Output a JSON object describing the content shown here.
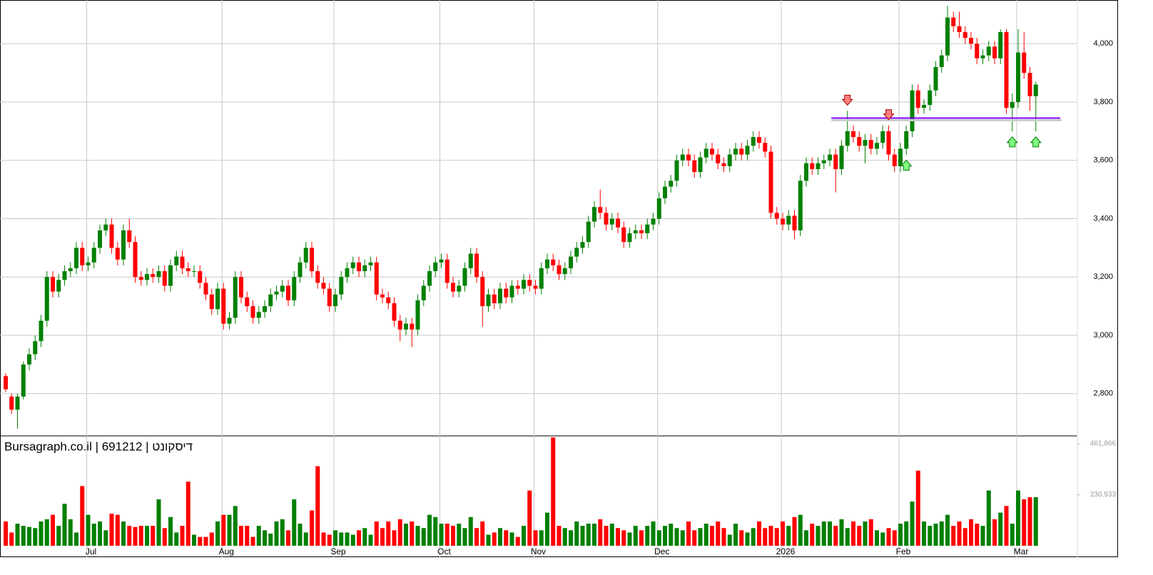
{
  "chart_data": {
    "type": "candlestick",
    "title": "Bursagraph.co.il | 691212 | דיסקונט",
    "up_color": "#008000",
    "down_color": "#ff0000",
    "level_color": "#8000ff",
    "level": 3745,
    "ylim": [
      2660,
      4150
    ],
    "yticks": [
      {
        "value": 2800,
        "label": "2,800"
      },
      {
        "value": 3000,
        "label": "3,000"
      },
      {
        "value": 3200,
        "label": "3,200"
      },
      {
        "value": 3400,
        "label": "3,400"
      },
      {
        "value": 3600,
        "label": "3,600"
      },
      {
        "value": 3800,
        "label": "3,800"
      },
      {
        "value": 4000,
        "label": "4,000"
      }
    ],
    "vlim": [
      0,
      494000
    ],
    "vticks": [
      {
        "value": 230933,
        "label": "230,933"
      },
      {
        "value": 461866,
        "label": "461,866"
      }
    ],
    "grid": true,
    "categories": [
      null,
      null,
      null,
      null,
      null,
      null,
      null,
      null,
      null,
      null,
      null,
      null,
      null,
      null,
      "Jul",
      null,
      null,
      null,
      null,
      null,
      null,
      null,
      null,
      null,
      null,
      null,
      null,
      null,
      null,
      null,
      null,
      null,
      null,
      null,
      null,
      null,
      null,
      "Aug",
      null,
      null,
      null,
      null,
      null,
      null,
      null,
      null,
      null,
      null,
      null,
      null,
      null,
      null,
      null,
      null,
      null,
      null,
      "Sep",
      null,
      null,
      null,
      null,
      null,
      null,
      null,
      null,
      null,
      null,
      null,
      null,
      null,
      null,
      null,
      null,
      null,
      "Oct",
      null,
      null,
      null,
      null,
      null,
      null,
      null,
      null,
      null,
      null,
      null,
      null,
      null,
      null,
      null,
      "Nov",
      null,
      null,
      null,
      null,
      null,
      null,
      null,
      null,
      null,
      null,
      null,
      null,
      null,
      null,
      null,
      null,
      null,
      null,
      null,
      null,
      "Dec",
      null,
      null,
      null,
      null,
      null,
      null,
      null,
      null,
      null,
      null,
      null,
      null,
      null,
      null,
      null,
      null,
      null,
      null,
      null,
      null,
      "2026",
      null,
      null,
      null,
      null,
      null,
      null,
      null,
      null,
      null,
      null,
      null,
      null,
      null,
      null,
      null,
      null,
      null,
      null,
      null,
      "Feb",
      null,
      null,
      null,
      null,
      null,
      null,
      null,
      null,
      null,
      null,
      null,
      null,
      null,
      null,
      null,
      null,
      null,
      null,
      null,
      "Mar",
      null,
      null,
      null
    ],
    "candles": [
      [
        2860,
        2870,
        2805,
        2815
      ],
      [
        2790,
        2800,
        2730,
        2745
      ],
      [
        2745,
        2800,
        2680,
        2790
      ],
      [
        2790,
        2910,
        2780,
        2900
      ],
      [
        2900,
        2955,
        2880,
        2935
      ],
      [
        2935,
        3000,
        2915,
        2980
      ],
      [
        2980,
        3070,
        2960,
        3050
      ],
      [
        3050,
        3220,
        3030,
        3200
      ],
      [
        3200,
        3220,
        3130,
        3150
      ],
      [
        3150,
        3210,
        3130,
        3190
      ],
      [
        3190,
        3240,
        3170,
        3220
      ],
      [
        3220,
        3250,
        3200,
        3230
      ],
      [
        3230,
        3320,
        3210,
        3300
      ],
      [
        3300,
        3320,
        3220,
        3240
      ],
      [
        3240,
        3270,
        3220,
        3250
      ],
      [
        3250,
        3320,
        3230,
        3300
      ],
      [
        3300,
        3380,
        3280,
        3360
      ],
      [
        3360,
        3400,
        3340,
        3380
      ],
      [
        3380,
        3400,
        3280,
        3300
      ],
      [
        3300,
        3320,
        3240,
        3260
      ],
      [
        3260,
        3380,
        3240,
        3360
      ],
      [
        3360,
        3400,
        3300,
        3320
      ],
      [
        3320,
        3340,
        3180,
        3200
      ],
      [
        3200,
        3220,
        3170,
        3190
      ],
      [
        3190,
        3230,
        3170,
        3210
      ],
      [
        3210,
        3230,
        3180,
        3200
      ],
      [
        3200,
        3240,
        3180,
        3220
      ],
      [
        3220,
        3240,
        3150,
        3170
      ],
      [
        3170,
        3260,
        3150,
        3240
      ],
      [
        3240,
        3290,
        3220,
        3270
      ],
      [
        3270,
        3290,
        3210,
        3230
      ],
      [
        3230,
        3250,
        3200,
        3220
      ],
      [
        3220,
        3240,
        3200,
        3220
      ],
      [
        3220,
        3240,
        3160,
        3180
      ],
      [
        3180,
        3200,
        3120,
        3140
      ],
      [
        3140,
        3160,
        3070,
        3090
      ],
      [
        3090,
        3180,
        3070,
        3160
      ],
      [
        3160,
        3180,
        3020,
        3040
      ],
      [
        3040,
        3080,
        3020,
        3060
      ],
      [
        3060,
        3220,
        3040,
        3200
      ],
      [
        3200,
        3220,
        3110,
        3130
      ],
      [
        3130,
        3150,
        3080,
        3100
      ],
      [
        3100,
        3120,
        3040,
        3060
      ],
      [
        3060,
        3100,
        3040,
        3080
      ],
      [
        3080,
        3120,
        3060,
        3100
      ],
      [
        3100,
        3160,
        3080,
        3140
      ],
      [
        3140,
        3170,
        3120,
        3150
      ],
      [
        3150,
        3190,
        3130,
        3170
      ],
      [
        3170,
        3190,
        3100,
        3120
      ],
      [
        3120,
        3220,
        3100,
        3200
      ],
      [
        3200,
        3270,
        3180,
        3250
      ],
      [
        3250,
        3320,
        3230,
        3300
      ],
      [
        3300,
        3320,
        3200,
        3220
      ],
      [
        3220,
        3240,
        3160,
        3180
      ],
      [
        3180,
        3200,
        3140,
        3160
      ],
      [
        3160,
        3180,
        3080,
        3100
      ],
      [
        3100,
        3160,
        3080,
        3140
      ],
      [
        3140,
        3220,
        3120,
        3200
      ],
      [
        3200,
        3250,
        3180,
        3230
      ],
      [
        3230,
        3270,
        3210,
        3250
      ],
      [
        3250,
        3270,
        3200,
        3220
      ],
      [
        3220,
        3260,
        3200,
        3240
      ],
      [
        3240,
        3270,
        3220,
        3250
      ],
      [
        3250,
        3270,
        3120,
        3140
      ],
      [
        3140,
        3160,
        3110,
        3130
      ],
      [
        3130,
        3150,
        3090,
        3110
      ],
      [
        3110,
        3130,
        3030,
        3050
      ],
      [
        3050,
        3070,
        2980,
        3020
      ],
      [
        3020,
        3060,
        3000,
        3040
      ],
      [
        3040,
        3060,
        2960,
        3020
      ],
      [
        3020,
        3140,
        3000,
        3120
      ],
      [
        3120,
        3190,
        3100,
        3170
      ],
      [
        3170,
        3240,
        3150,
        3220
      ],
      [
        3220,
        3270,
        3200,
        3250
      ],
      [
        3250,
        3280,
        3230,
        3260
      ],
      [
        3260,
        3280,
        3160,
        3180
      ],
      [
        3180,
        3200,
        3130,
        3150
      ],
      [
        3150,
        3190,
        3130,
        3170
      ],
      [
        3170,
        3250,
        3150,
        3230
      ],
      [
        3230,
        3300,
        3210,
        3280
      ],
      [
        3280,
        3300,
        3180,
        3200
      ],
      [
        3200,
        3220,
        3030,
        3100
      ],
      [
        3100,
        3160,
        3080,
        3140
      ],
      [
        3140,
        3160,
        3090,
        3110
      ],
      [
        3110,
        3180,
        3090,
        3160
      ],
      [
        3160,
        3180,
        3110,
        3130
      ],
      [
        3130,
        3190,
        3110,
        3170
      ],
      [
        3170,
        3190,
        3140,
        3160
      ],
      [
        3160,
        3210,
        3140,
        3190
      ],
      [
        3190,
        3210,
        3150,
        3170
      ],
      [
        3170,
        3190,
        3140,
        3160
      ],
      [
        3160,
        3250,
        3140,
        3230
      ],
      [
        3230,
        3280,
        3210,
        3260
      ],
      [
        3260,
        3280,
        3220,
        3240
      ],
      [
        3240,
        3260,
        3190,
        3210
      ],
      [
        3210,
        3250,
        3190,
        3230
      ],
      [
        3230,
        3290,
        3210,
        3270
      ],
      [
        3270,
        3320,
        3250,
        3300
      ],
      [
        3300,
        3340,
        3280,
        3320
      ],
      [
        3320,
        3410,
        3300,
        3390
      ],
      [
        3390,
        3460,
        3370,
        3440
      ],
      [
        3440,
        3500,
        3400,
        3420
      ],
      [
        3420,
        3440,
        3360,
        3380
      ],
      [
        3380,
        3420,
        3360,
        3400
      ],
      [
        3400,
        3420,
        3350,
        3370
      ],
      [
        3370,
        3390,
        3300,
        3320
      ],
      [
        3320,
        3370,
        3300,
        3350
      ],
      [
        3350,
        3380,
        3330,
        3360
      ],
      [
        3360,
        3380,
        3330,
        3350
      ],
      [
        3350,
        3400,
        3330,
        3380
      ],
      [
        3380,
        3420,
        3360,
        3400
      ],
      [
        3400,
        3490,
        3380,
        3470
      ],
      [
        3470,
        3530,
        3450,
        3510
      ],
      [
        3510,
        3550,
        3490,
        3530
      ],
      [
        3530,
        3620,
        3510,
        3600
      ],
      [
        3600,
        3640,
        3580,
        3620
      ],
      [
        3620,
        3640,
        3580,
        3600
      ],
      [
        3600,
        3620,
        3540,
        3560
      ],
      [
        3560,
        3630,
        3540,
        3610
      ],
      [
        3610,
        3660,
        3590,
        3640
      ],
      [
        3640,
        3660,
        3600,
        3620
      ],
      [
        3620,
        3640,
        3570,
        3590
      ],
      [
        3590,
        3610,
        3560,
        3580
      ],
      [
        3580,
        3640,
        3560,
        3620
      ],
      [
        3620,
        3660,
        3600,
        3640
      ],
      [
        3640,
        3660,
        3600,
        3620
      ],
      [
        3620,
        3670,
        3600,
        3650
      ],
      [
        3650,
        3700,
        3630,
        3680
      ],
      [
        3680,
        3700,
        3640,
        3660
      ],
      [
        3660,
        3680,
        3610,
        3630
      ],
      [
        3630,
        3650,
        3400,
        3420
      ],
      [
        3420,
        3440,
        3380,
        3400
      ],
      [
        3400,
        3420,
        3360,
        3380
      ],
      [
        3380,
        3430,
        3360,
        3410
      ],
      [
        3410,
        3430,
        3330,
        3360
      ],
      [
        3360,
        3550,
        3340,
        3530
      ],
      [
        3530,
        3610,
        3510,
        3590
      ],
      [
        3590,
        3610,
        3550,
        3570
      ],
      [
        3570,
        3610,
        3550,
        3590
      ],
      [
        3590,
        3620,
        3570,
        3600
      ],
      [
        3600,
        3640,
        3580,
        3620
      ],
      [
        3620,
        3640,
        3490,
        3570
      ],
      [
        3570,
        3670,
        3550,
        3650
      ],
      [
        3650,
        3770,
        3630,
        3700
      ],
      [
        3700,
        3720,
        3660,
        3680
      ],
      [
        3680,
        3700,
        3630,
        3650
      ],
      [
        3650,
        3690,
        3590,
        3670
      ],
      [
        3670,
        3690,
        3620,
        3640
      ],
      [
        3640,
        3680,
        3620,
        3660
      ],
      [
        3660,
        3720,
        3640,
        3700
      ],
      [
        3700,
        3720,
        3600,
        3620
      ],
      [
        3620,
        3640,
        3560,
        3580
      ],
      [
        3580,
        3660,
        3560,
        3640
      ],
      [
        3640,
        3720,
        3620,
        3700
      ],
      [
        3700,
        3860,
        3680,
        3840
      ],
      [
        3840,
        3860,
        3760,
        3780
      ],
      [
        3780,
        3810,
        3760,
        3790
      ],
      [
        3790,
        3860,
        3770,
        3840
      ],
      [
        3840,
        3940,
        3820,
        3920
      ],
      [
        3920,
        3980,
        3900,
        3960
      ],
      [
        3960,
        4130,
        3940,
        4090
      ],
      [
        4090,
        4110,
        4040,
        4060
      ],
      [
        4060,
        4110,
        4020,
        4040
      ],
      [
        4040,
        4060,
        4000,
        4020
      ],
      [
        4020,
        4040,
        3980,
        4000
      ],
      [
        4000,
        4020,
        3930,
        3950
      ],
      [
        3950,
        3980,
        3930,
        3960
      ],
      [
        3960,
        4010,
        3940,
        3990
      ],
      [
        3990,
        4010,
        3930,
        3950
      ],
      [
        3950,
        4050,
        3930,
        4040
      ],
      [
        4040,
        4050,
        3760,
        3780
      ],
      [
        3780,
        3830,
        3700,
        3800
      ],
      [
        3800,
        4050,
        3780,
        3970
      ],
      [
        3970,
        4040,
        3880,
        3900
      ],
      [
        3900,
        3920,
        3770,
        3820
      ],
      [
        3820,
        3870,
        3700,
        3860
      ]
    ],
    "volumes": [
      110000,
      60000,
      100000,
      90000,
      85000,
      80000,
      110000,
      120000,
      140000,
      90000,
      190000,
      120000,
      60000,
      270000,
      140000,
      100000,
      110000,
      70000,
      145000,
      140000,
      110000,
      90000,
      85000,
      90000,
      90000,
      90000,
      210000,
      80000,
      130000,
      60000,
      90000,
      290000,
      50000,
      40000,
      40000,
      60000,
      110000,
      140000,
      140000,
      180000,
      90000,
      90000,
      40000,
      90000,
      70000,
      55000,
      110000,
      120000,
      70000,
      210000,
      100000,
      60000,
      160000,
      360000,
      60000,
      50000,
      70000,
      60000,
      60000,
      50000,
      70000,
      80000,
      50000,
      110000,
      80000,
      110000,
      70000,
      120000,
      100000,
      110000,
      90000,
      80000,
      140000,
      130000,
      100000,
      100000,
      90000,
      100000,
      80000,
      130000,
      80000,
      110000,
      50000,
      60000,
      80000,
      70000,
      60000,
      40000,
      90000,
      250000,
      70000,
      70000,
      150000,
      490000,
      90000,
      80000,
      70000,
      110000,
      90000,
      100000,
      100000,
      120000,
      90000,
      100000,
      80000,
      70000,
      60000,
      90000,
      70000,
      90000,
      110000,
      70000,
      90000,
      100000,
      80000,
      70000,
      110000,
      70000,
      80000,
      100000,
      90000,
      110000,
      80000,
      50000,
      100000,
      70000,
      60000,
      80000,
      110000,
      80000,
      90000,
      80000,
      110000,
      90000,
      130000,
      140000,
      70000,
      100000,
      90000,
      110000,
      110000,
      90000,
      120000,
      80000,
      110000,
      90000,
      110000,
      120000,
      70000,
      60000,
      80000,
      70000,
      100000,
      110000,
      200000,
      340000,
      110000,
      90000,
      100000,
      110000,
      140000,
      90000,
      110000,
      80000,
      120000,
      100000,
      90000,
      250000,
      120000,
      150000,
      180000,
      100000,
      250000,
      210000,
      220000,
      220000
    ]
  }
}
